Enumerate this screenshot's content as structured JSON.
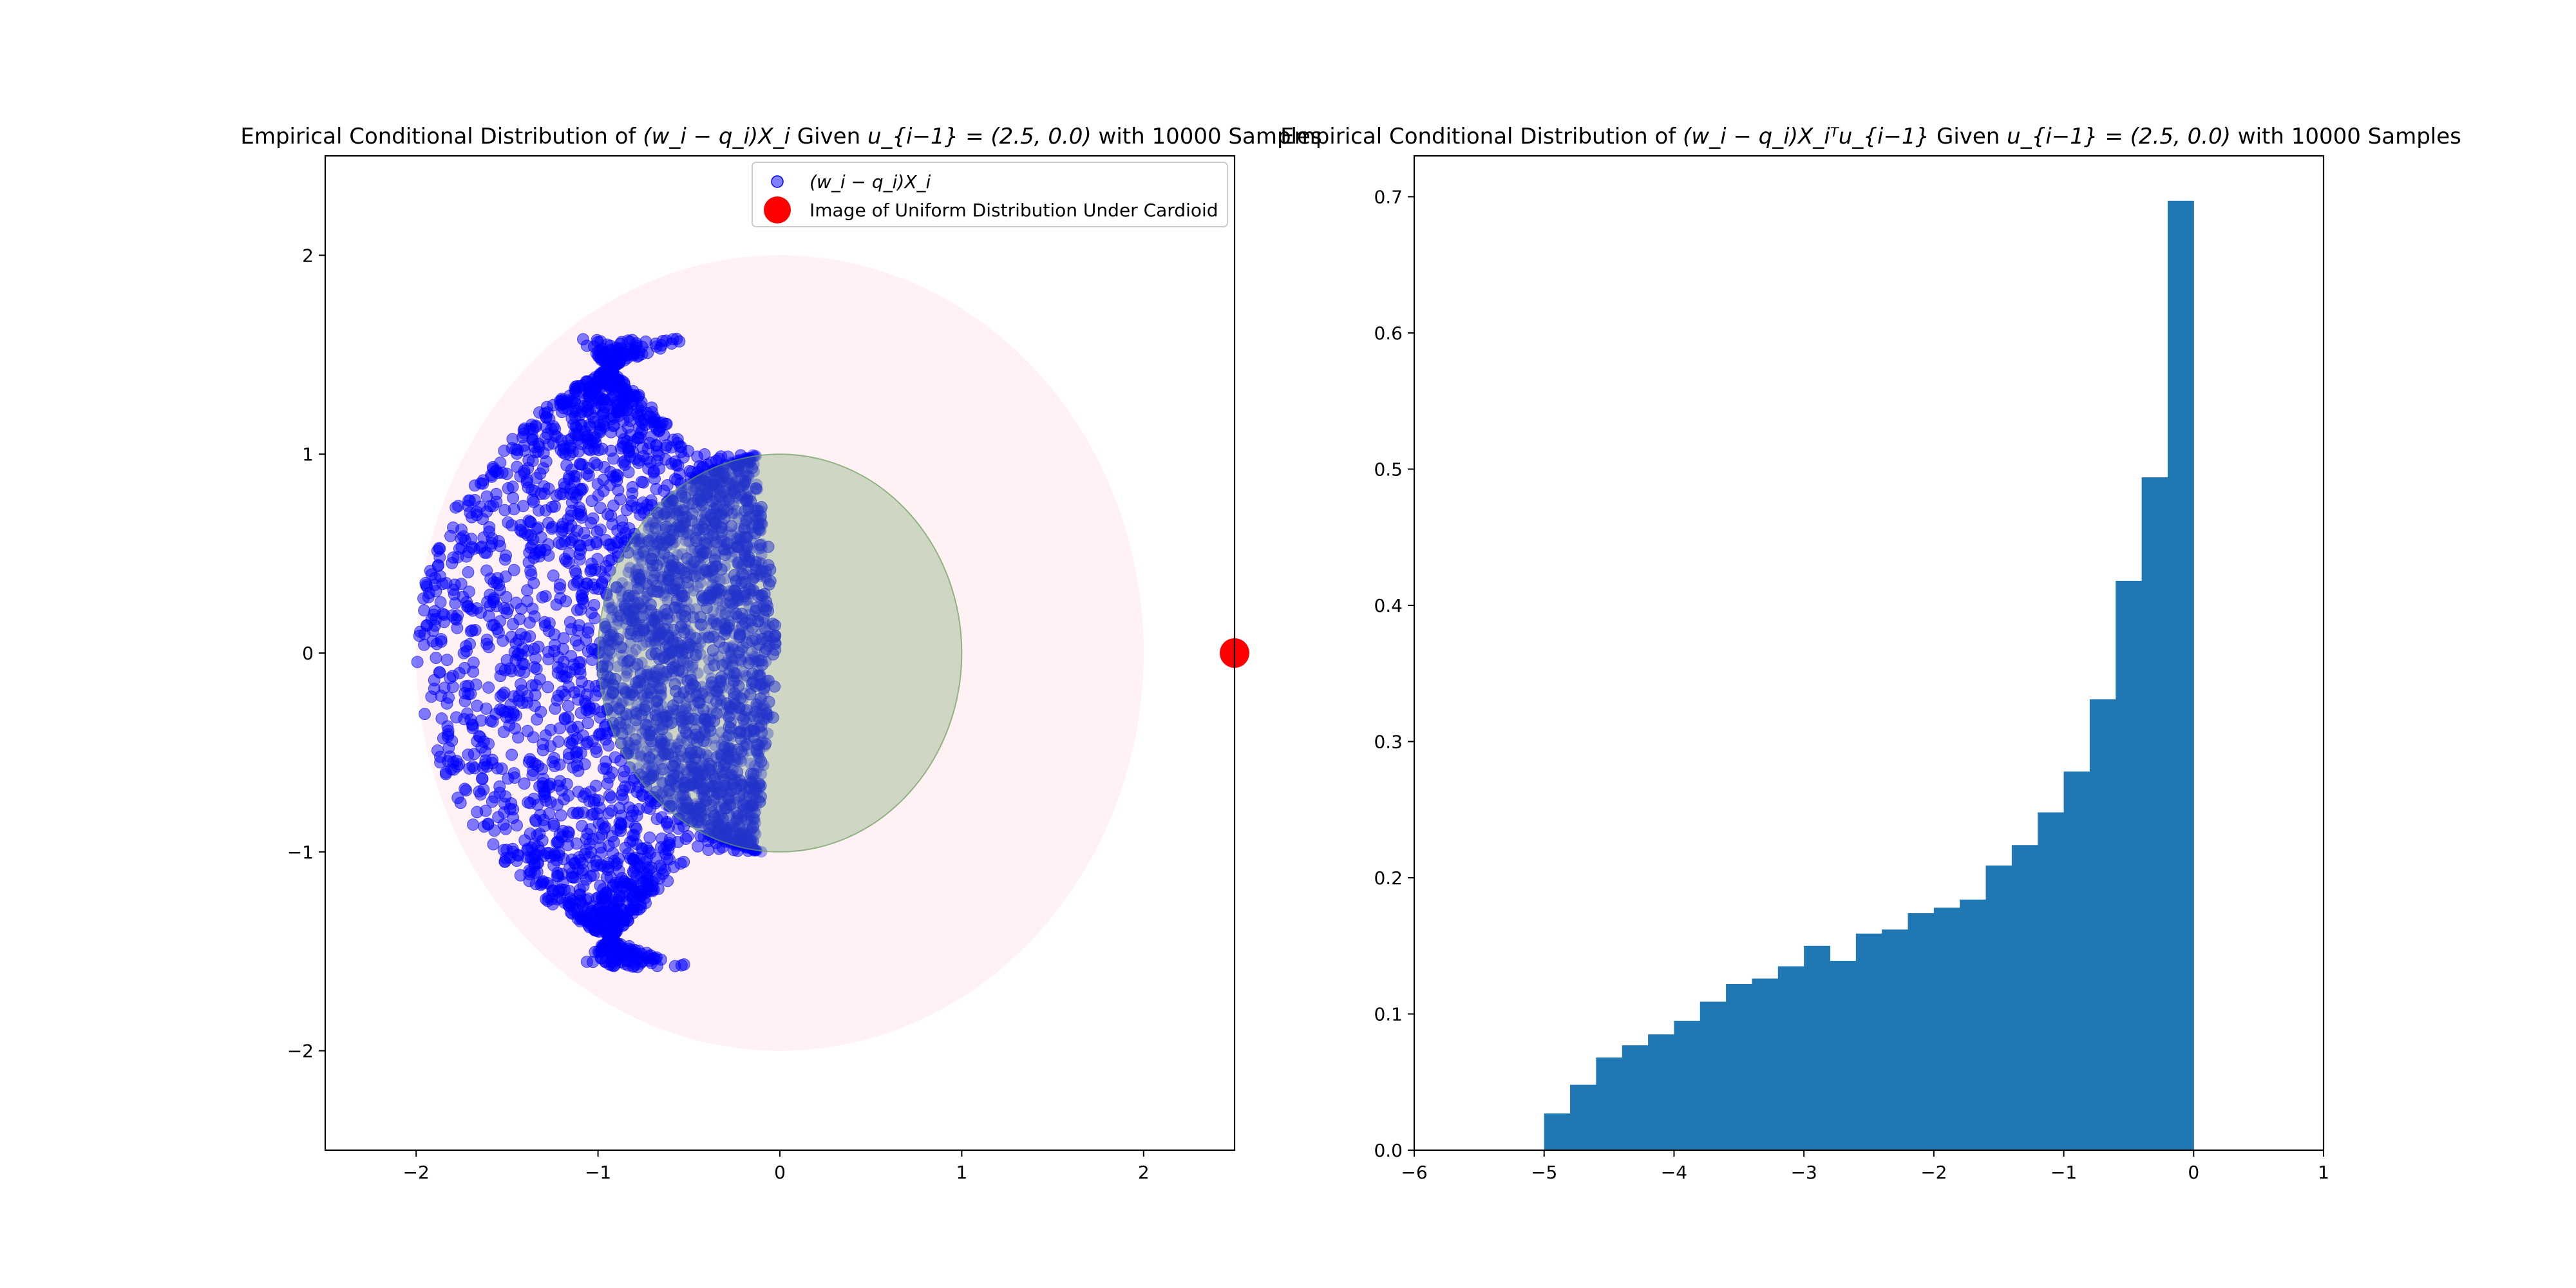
{
  "chart_data": [
    {
      "type": "scatter",
      "title_main": "Empirical Conditional Distribution of ",
      "title_math": "(w_i − q_i)X_i",
      "title_mid": " Given ",
      "title_cond": "u_{i−1} = (2.5, 0.0)",
      "title_end": " with 10000 Samples",
      "xlim": [
        -2.5,
        2.5
      ],
      "ylim": [
        -2.5,
        2.5
      ],
      "xticks": [
        "−2",
        "−1",
        "0",
        "1",
        "2"
      ],
      "yticks": [
        "−2",
        "−1",
        "0",
        "1",
        "2"
      ],
      "xtick_values": [
        -2,
        -1,
        0,
        1,
        2
      ],
      "ytick_values": [
        -2,
        -1,
        0,
        1,
        2
      ],
      "legend": [
        {
          "label": "(w_i − q_i)X_i",
          "color": "#0000ff"
        },
        {
          "label": "Image of Uniform Distribution Under Cardioid",
          "color": "#ff0000"
        }
      ],
      "legend_position": "upper right",
      "regions": [
        {
          "name": "outer-disc",
          "center": [
            0,
            0
          ],
          "radius": 2,
          "color": "#ffc0cb"
        },
        {
          "name": "inner-disc",
          "center": [
            0,
            0
          ],
          "radius": 1,
          "color": "#6b9e5e"
        }
      ],
      "highlight_point": {
        "x": 2.5,
        "y": 0.0,
        "color": "#ff0000"
      },
      "series_color": "#0000ff",
      "sample_count": 10000
    },
    {
      "type": "bar",
      "title_main": "Empirical Conditional Distribution of ",
      "title_math": "(w_i − q_i)X_iᵀu_{i−1}",
      "title_mid": " Given ",
      "title_cond": "u_{i−1} = (2.5, 0.0)",
      "title_end": " with 10000 Samples",
      "xlim": [
        -6,
        1
      ],
      "ylim": [
        0,
        0.73
      ],
      "xticks": [
        "−6",
        "−5",
        "−4",
        "−3",
        "−2",
        "−1",
        "0",
        "1"
      ],
      "xtick_values": [
        -6,
        -5,
        -4,
        -3,
        -2,
        -1,
        0,
        1
      ],
      "yticks": [
        "0.0",
        "0.1",
        "0.2",
        "0.3",
        "0.4",
        "0.5",
        "0.6",
        "0.7"
      ],
      "ytick_values": [
        0,
        0.1,
        0.2,
        0.3,
        0.4,
        0.5,
        0.6,
        0.7
      ],
      "bin_edges_start": -5.0,
      "bin_width": 0.2,
      "values": [
        0.027,
        0.048,
        0.068,
        0.077,
        0.085,
        0.095,
        0.109,
        0.122,
        0.126,
        0.135,
        0.15,
        0.139,
        0.159,
        0.162,
        0.174,
        0.178,
        0.184,
        0.209,
        0.224,
        0.248,
        0.278,
        0.331,
        0.418,
        0.494,
        0.697
      ],
      "bar_color": "#1f77b4"
    }
  ]
}
